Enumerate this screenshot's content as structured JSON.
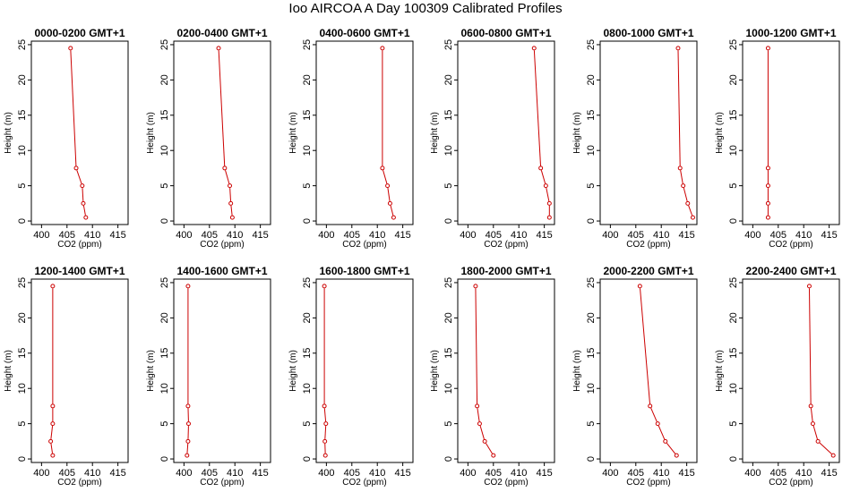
{
  "figure": {
    "title": "Ioo AIRCOA A  Day 100309  Calibrated Profiles",
    "background": "#ffffff",
    "line_color": "#cc0000"
  },
  "chart_data": [
    {
      "type": "line",
      "title": "0000-0200 GMT+1",
      "xlabel": "CO2 (ppm)",
      "ylabel": "Height (m)",
      "xlim": [
        398,
        417
      ],
      "ylim": [
        -0.5,
        25.5
      ],
      "xticks": [
        400,
        405,
        410,
        415
      ],
      "yticks": [
        0,
        5,
        10,
        15,
        20,
        25
      ],
      "series": [
        {
          "x": [
            408.7,
            408.2,
            408.0,
            406.8,
            405.7
          ],
          "y": [
            0.5,
            2.5,
            5,
            7.5,
            24.5
          ]
        }
      ]
    },
    {
      "type": "line",
      "title": "0200-0400 GMT+1",
      "xlabel": "CO2 (ppm)",
      "ylabel": "Height (m)",
      "xlim": [
        398,
        417
      ],
      "ylim": [
        -0.5,
        25.5
      ],
      "xticks": [
        400,
        405,
        410,
        415
      ],
      "yticks": [
        0,
        5,
        10,
        15,
        20,
        25
      ],
      "series": [
        {
          "x": [
            409.5,
            409.2,
            409.0,
            408.0,
            406.8
          ],
          "y": [
            0.5,
            2.5,
            5,
            7.5,
            24.5
          ]
        }
      ]
    },
    {
      "type": "line",
      "title": "0400-0600 GMT+1",
      "xlabel": "CO2 (ppm)",
      "ylabel": "Height (m)",
      "xlim": [
        398,
        417
      ],
      "ylim": [
        -0.5,
        25.5
      ],
      "xticks": [
        400,
        405,
        410,
        415
      ],
      "yticks": [
        0,
        5,
        10,
        15,
        20,
        25
      ],
      "series": [
        {
          "x": [
            413.2,
            412.5,
            412.0,
            411.0,
            411.0
          ],
          "y": [
            0.5,
            2.5,
            5,
            7.5,
            24.5
          ]
        }
      ]
    },
    {
      "type": "line",
      "title": "0600-0800 GMT+1",
      "xlabel": "CO2 (ppm)",
      "ylabel": "Height (m)",
      "xlim": [
        398,
        417
      ],
      "ylim": [
        -0.5,
        25.5
      ],
      "xticks": [
        400,
        405,
        410,
        415
      ],
      "yticks": [
        0,
        5,
        10,
        15,
        20,
        25
      ],
      "series": [
        {
          "x": [
            416.0,
            416.0,
            415.3,
            414.3,
            413.0
          ],
          "y": [
            0.5,
            2.5,
            5,
            7.5,
            24.5
          ]
        }
      ]
    },
    {
      "type": "line",
      "title": "0800-1000 GMT+1",
      "xlabel": "CO2 (ppm)",
      "ylabel": "Height (m)",
      "xlim": [
        398,
        417
      ],
      "ylim": [
        -0.5,
        25.5
      ],
      "xticks": [
        400,
        405,
        410,
        415
      ],
      "yticks": [
        0,
        5,
        10,
        15,
        20,
        25
      ],
      "series": [
        {
          "x": [
            416.2,
            415.2,
            414.3,
            413.7,
            413.3
          ],
          "y": [
            0.5,
            2.5,
            5,
            7.5,
            24.5
          ]
        }
      ]
    },
    {
      "type": "line",
      "title": "1000-1200 GMT+1",
      "xlabel": "CO2 (ppm)",
      "ylabel": "Height (m)",
      "xlim": [
        398,
        417
      ],
      "ylim": [
        -0.5,
        25.5
      ],
      "xticks": [
        400,
        405,
        410,
        415
      ],
      "yticks": [
        0,
        5,
        10,
        15,
        20,
        25
      ],
      "series": [
        {
          "x": [
            403.0,
            403.0,
            403.0,
            403.0,
            403.0
          ],
          "y": [
            0.5,
            2.5,
            5,
            7.5,
            24.5
          ]
        }
      ]
    },
    {
      "type": "line",
      "title": "1200-1400 GMT+1",
      "xlabel": "CO2 (ppm)",
      "ylabel": "Height (m)",
      "xlim": [
        398,
        417
      ],
      "ylim": [
        -0.5,
        25.5
      ],
      "xticks": [
        400,
        405,
        410,
        415
      ],
      "yticks": [
        0,
        5,
        10,
        15,
        20,
        25
      ],
      "series": [
        {
          "x": [
            402.2,
            401.8,
            402.2,
            402.2,
            402.2
          ],
          "y": [
            0.5,
            2.5,
            5,
            7.5,
            24.5
          ]
        }
      ]
    },
    {
      "type": "line",
      "title": "1400-1600 GMT+1",
      "xlabel": "CO2 (ppm)",
      "ylabel": "Height (m)",
      "xlim": [
        398,
        417
      ],
      "ylim": [
        -0.5,
        25.5
      ],
      "xticks": [
        400,
        405,
        410,
        415
      ],
      "yticks": [
        0,
        5,
        10,
        15,
        20,
        25
      ],
      "series": [
        {
          "x": [
            400.6,
            400.8,
            400.9,
            400.8,
            400.8
          ],
          "y": [
            0.5,
            2.5,
            5,
            7.5,
            24.5
          ]
        }
      ]
    },
    {
      "type": "line",
      "title": "1600-1800 GMT+1",
      "xlabel": "CO2 (ppm)",
      "ylabel": "Height (m)",
      "xlim": [
        398,
        417
      ],
      "ylim": [
        -0.5,
        25.5
      ],
      "xticks": [
        400,
        405,
        410,
        415
      ],
      "yticks": [
        0,
        5,
        10,
        15,
        20,
        25
      ],
      "series": [
        {
          "x": [
            399.8,
            399.7,
            399.9,
            399.6,
            399.6
          ],
          "y": [
            0.5,
            2.5,
            5,
            7.5,
            24.5
          ]
        }
      ]
    },
    {
      "type": "line",
      "title": "1800-2000 GMT+1",
      "xlabel": "CO2 (ppm)",
      "ylabel": "Height (m)",
      "xlim": [
        398,
        417
      ],
      "ylim": [
        -0.5,
        25.5
      ],
      "xticks": [
        400,
        405,
        410,
        415
      ],
      "yticks": [
        0,
        5,
        10,
        15,
        20,
        25
      ],
      "series": [
        {
          "x": [
            405.0,
            403.3,
            402.3,
            401.8,
            401.5
          ],
          "y": [
            0.5,
            2.5,
            5,
            7.5,
            24.5
          ]
        }
      ]
    },
    {
      "type": "line",
      "title": "2000-2200 GMT+1",
      "xlabel": "CO2 (ppm)",
      "ylabel": "Height (m)",
      "xlim": [
        398,
        417
      ],
      "ylim": [
        -0.5,
        25.5
      ],
      "xticks": [
        400,
        405,
        410,
        415
      ],
      "yticks": [
        0,
        5,
        10,
        15,
        20,
        25
      ],
      "series": [
        {
          "x": [
            413.0,
            410.8,
            409.3,
            407.8,
            405.8
          ],
          "y": [
            0.5,
            2.5,
            5,
            7.5,
            24.5
          ]
        }
      ]
    },
    {
      "type": "line",
      "title": "2200-2400 GMT+1",
      "xlabel": "CO2 (ppm)",
      "ylabel": "Height (m)",
      "xlim": [
        398,
        417
      ],
      "ylim": [
        -0.5,
        25.5
      ],
      "xticks": [
        400,
        405,
        410,
        415
      ],
      "yticks": [
        0,
        5,
        10,
        15,
        20,
        25
      ],
      "series": [
        {
          "x": [
            415.8,
            412.8,
            411.8,
            411.4,
            411.1
          ],
          "y": [
            0.5,
            2.5,
            5,
            7.5,
            24.5
          ]
        }
      ]
    }
  ]
}
